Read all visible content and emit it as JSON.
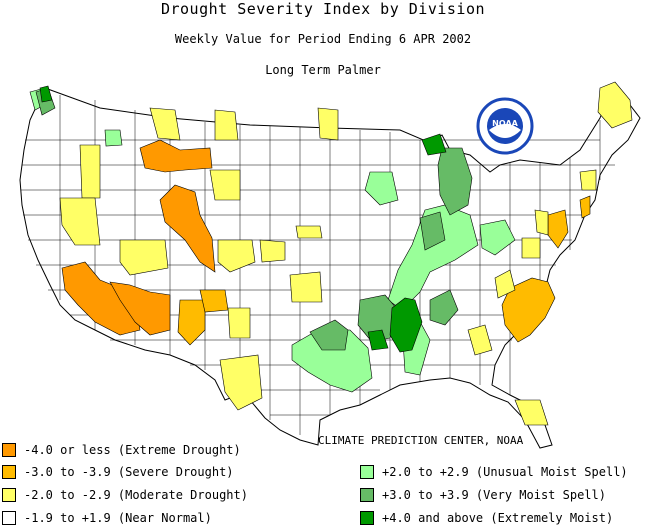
{
  "title": "Drought Severity Index by Division",
  "subtitle": "Weekly Value for Period Ending  6 APR 2002",
  "index_name": "Long Term Palmer",
  "logo": {
    "text": "NOAA",
    "fill": "#1a47b8"
  },
  "credit": "CLIMATE PREDICTION CENTER, NOAA",
  "colors": {
    "extreme_drought": "#ff9900",
    "severe_drought": "#ffbb00",
    "moderate_drought": "#ffff66",
    "near_normal": "#ffffff",
    "unusual_moist": "#99ff99",
    "very_moist": "#66bb66",
    "extremely_moist": "#009900",
    "outline": "#000000"
  },
  "legend": [
    {
      "label": "-4.0 or less (Extreme Drought)",
      "color": "#ff9900"
    },
    {
      "label": "-3.0 to -3.9 (Severe Drought)",
      "color": "#ffbb00"
    },
    {
      "label": "-2.0 to -2.9 (Moderate Drought)",
      "color": "#ffff66"
    },
    {
      "label": "-1.9 to +1.9 (Near Normal)",
      "color": "#ffffff"
    },
    {
      "label": "+2.0 to +2.9 (Unusual Moist Spell)",
      "color": "#99ff99"
    },
    {
      "label": "+3.0 to +3.9 (Very Moist Spell)",
      "color": "#66bb66"
    },
    {
      "label": "+4.0 and above (Extremely Moist)",
      "color": "#009900"
    }
  ]
}
